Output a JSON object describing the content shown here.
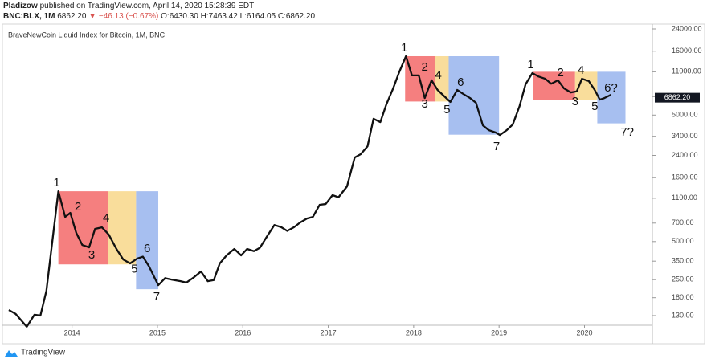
{
  "header": {
    "author": "Pladizow",
    "published": "published on TradingView.com, April 14, 2020 15:28:39 EDT",
    "symbol": "BNC:BLX, 1M",
    "last": "6862.20",
    "change": "−46.13 (−0.67%)",
    "open": "O:6430.30",
    "high": "H:7463.42",
    "low": "L:6164.05",
    "close": "C:6862.20"
  },
  "footer": {
    "brand": "TradingView"
  },
  "chart_data": {
    "type": "line",
    "title": "BraveNewCoin Liquid Index for Bitcoin, 1M, BNC",
    "color": "#111111",
    "log_y": true,
    "x": [
      2013.26,
      2013.34,
      2013.47,
      2013.56,
      2013.63,
      2013.7,
      2013.84,
      2013.92,
      2013.98,
      2014.05,
      2014.12,
      2014.2,
      2014.27,
      2014.35,
      2014.43,
      2014.52,
      2014.6,
      2014.68,
      2014.76,
      2014.83,
      2014.9,
      2015.01,
      2015.09,
      2015.17,
      2015.27,
      2015.34,
      2015.43,
      2015.51,
      2015.59,
      2015.66,
      2015.73,
      2015.81,
      2015.9,
      2015.98,
      2016.05,
      2016.13,
      2016.2,
      2016.28,
      2016.37,
      2016.45,
      2016.52,
      2016.6,
      2016.67,
      2016.75,
      2016.82,
      2016.9,
      2016.97,
      2017.05,
      2017.12,
      2017.22,
      2017.31,
      2017.38,
      2017.46,
      2017.53,
      2017.61,
      2017.68,
      2017.76,
      2017.83,
      2017.91,
      2017.98,
      2018.06,
      2018.13,
      2018.21,
      2018.28,
      2018.36,
      2018.43,
      2018.51,
      2018.58,
      2018.66,
      2018.73,
      2018.81,
      2018.88,
      2018.96,
      2019.01,
      2019.09,
      2019.16,
      2019.24,
      2019.31,
      2019.39,
      2019.46,
      2019.54,
      2019.61,
      2019.69,
      2019.76,
      2019.84,
      2019.91,
      2019.97,
      2020.05,
      2020.12,
      2020.18,
      2020.23,
      2020.31
    ],
    "values": [
      144,
      134,
      106,
      132,
      130,
      204,
      1250,
      783,
      843,
      585,
      470,
      450,
      630,
      648,
      568,
      437,
      361,
      336,
      366,
      380,
      320,
      226,
      257,
      250,
      243,
      237,
      262,
      290,
      243,
      248,
      336,
      389,
      437,
      389,
      437,
      420,
      447,
      545,
      676,
      650,
      607,
      650,
      707,
      760,
      783,
      977,
      990,
      1164,
      1120,
      1365,
      2311,
      2455,
      2830,
      4670,
      4400,
      6060,
      8130,
      10900,
      14600,
      10300,
      10300,
      6820,
      9420,
      7900,
      7030,
      6350,
      7900,
      7350,
      6820,
      6250,
      4150,
      3800,
      3640,
      3480,
      3800,
      4210,
      5890,
      8750,
      10750,
      10100,
      9690,
      8850,
      9420,
      8130,
      7550,
      7700,
      9690,
      9300,
      7900,
      6620,
      6800,
      7240
    ],
    "xlim": [
      2013.185,
      2020.795
    ],
    "xticks": [
      2014,
      2015,
      2016,
      2017,
      2018,
      2019,
      2020
    ],
    "ylim": [
      109,
      26200
    ],
    "yticks": [
      {
        "value": 130,
        "label": "130.00"
      },
      {
        "value": 180,
        "label": "180.00"
      },
      {
        "value": 250,
        "label": "250.00"
      },
      {
        "value": 350,
        "label": "350.00"
      },
      {
        "value": 500,
        "label": "500.00"
      },
      {
        "value": 700,
        "label": "700.00"
      },
      {
        "value": 1100,
        "label": "1100.00"
      },
      {
        "value": 1600,
        "label": "1600.00"
      },
      {
        "value": 2400,
        "label": "2400.00"
      },
      {
        "value": 3400,
        "label": "3400.00"
      },
      {
        "value": 5000,
        "label": "5000.00"
      },
      {
        "value": 7000,
        "label": "7000.00"
      },
      {
        "value": 11000,
        "label": "11000.00"
      },
      {
        "value": 16000,
        "label": "16000.00"
      },
      {
        "value": 24000,
        "label": "24000.00"
      }
    ],
    "current_price": {
      "value": 6862.2,
      "label": "6862.20"
    },
    "zones": [
      {
        "x": [
          2013.84,
          2014.42
        ],
        "y": [
          330,
          1250
        ],
        "color": "#f57f7f"
      },
      {
        "x": [
          2014.42,
          2014.75
        ],
        "y": [
          330,
          1250
        ],
        "color": "#f9dd9b"
      },
      {
        "x": [
          2014.75,
          2015.01
        ],
        "y": [
          210,
          1250
        ],
        "color": "#a7bff0"
      },
      {
        "x": [
          2017.9,
          2018.25
        ],
        "y": [
          6400,
          14600
        ],
        "color": "#f57f7f"
      },
      {
        "x": [
          2018.25,
          2018.41
        ],
        "y": [
          6400,
          14600
        ],
        "color": "#f9dd9b"
      },
      {
        "x": [
          2018.41,
          2019.0
        ],
        "y": [
          3500,
          14600
        ],
        "color": "#a7bff0"
      },
      {
        "x": [
          2019.4,
          2019.89
        ],
        "y": [
          6600,
          11000
        ],
        "color": "#f57f7f"
      },
      {
        "x": [
          2019.89,
          2020.15
        ],
        "y": [
          6600,
          11000
        ],
        "color": "#f9dd9b"
      },
      {
        "x": [
          2020.15,
          2020.48
        ],
        "y": [
          4300,
          11000
        ],
        "color": "#a7bff0"
      }
    ],
    "annotations": [
      {
        "text": "1",
        "x": 2013.82,
        "y": 1450
      },
      {
        "text": "2",
        "x": 2014.07,
        "y": 935
      },
      {
        "text": "3",
        "x": 2014.23,
        "y": 389
      },
      {
        "text": "4",
        "x": 2014.4,
        "y": 760
      },
      {
        "text": "5",
        "x": 2014.73,
        "y": 302
      },
      {
        "text": "6",
        "x": 2014.88,
        "y": 437
      },
      {
        "text": "7",
        "x": 2014.99,
        "y": 182
      },
      {
        "text": "1",
        "x": 2017.89,
        "y": 16900
      },
      {
        "text": "2",
        "x": 2018.13,
        "y": 11900
      },
      {
        "text": "3",
        "x": 2018.13,
        "y": 6070
      },
      {
        "text": "4",
        "x": 2018.29,
        "y": 10300
      },
      {
        "text": "5",
        "x": 2018.39,
        "y": 5480
      },
      {
        "text": "6",
        "x": 2018.55,
        "y": 9020
      },
      {
        "text": "7",
        "x": 2018.97,
        "y": 2800
      },
      {
        "text": "1",
        "x": 2019.37,
        "y": 12400
      },
      {
        "text": "2",
        "x": 2019.72,
        "y": 10750
      },
      {
        "text": "3",
        "x": 2019.89,
        "y": 6340
      },
      {
        "text": "4",
        "x": 2019.96,
        "y": 11200
      },
      {
        "text": "5",
        "x": 2020.12,
        "y": 5810
      },
      {
        "text": "6?",
        "x": 2020.31,
        "y": 8130
      },
      {
        "text": "7?",
        "x": 2020.5,
        "y": 3640
      }
    ]
  }
}
